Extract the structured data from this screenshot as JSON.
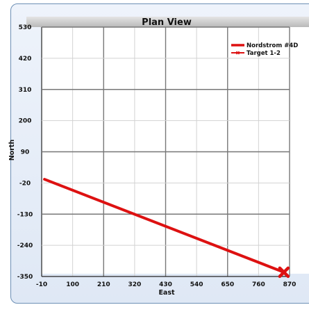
{
  "chart_data": {
    "type": "line",
    "title": "Plan View",
    "xlabel": "East",
    "ylabel": "North",
    "xlim": [
      -10,
      870
    ],
    "ylim": [
      -350,
      530
    ],
    "x_ticks": [
      -10,
      100,
      210,
      320,
      430,
      540,
      650,
      760,
      870
    ],
    "y_ticks": [
      530,
      420,
      310,
      200,
      90,
      -20,
      -130,
      -240,
      -350
    ],
    "grid": true,
    "legend_position": "top-right",
    "series": [
      {
        "name": "Nordstrom #4D",
        "color": "#dd1111",
        "marker": "none",
        "x": [
          0,
          850
        ],
        "y": [
          -7,
          -335
        ]
      },
      {
        "name": "Target 1-2",
        "color": "#dd1111",
        "marker": "x",
        "x": [
          850
        ],
        "y": [
          -335
        ]
      }
    ]
  }
}
